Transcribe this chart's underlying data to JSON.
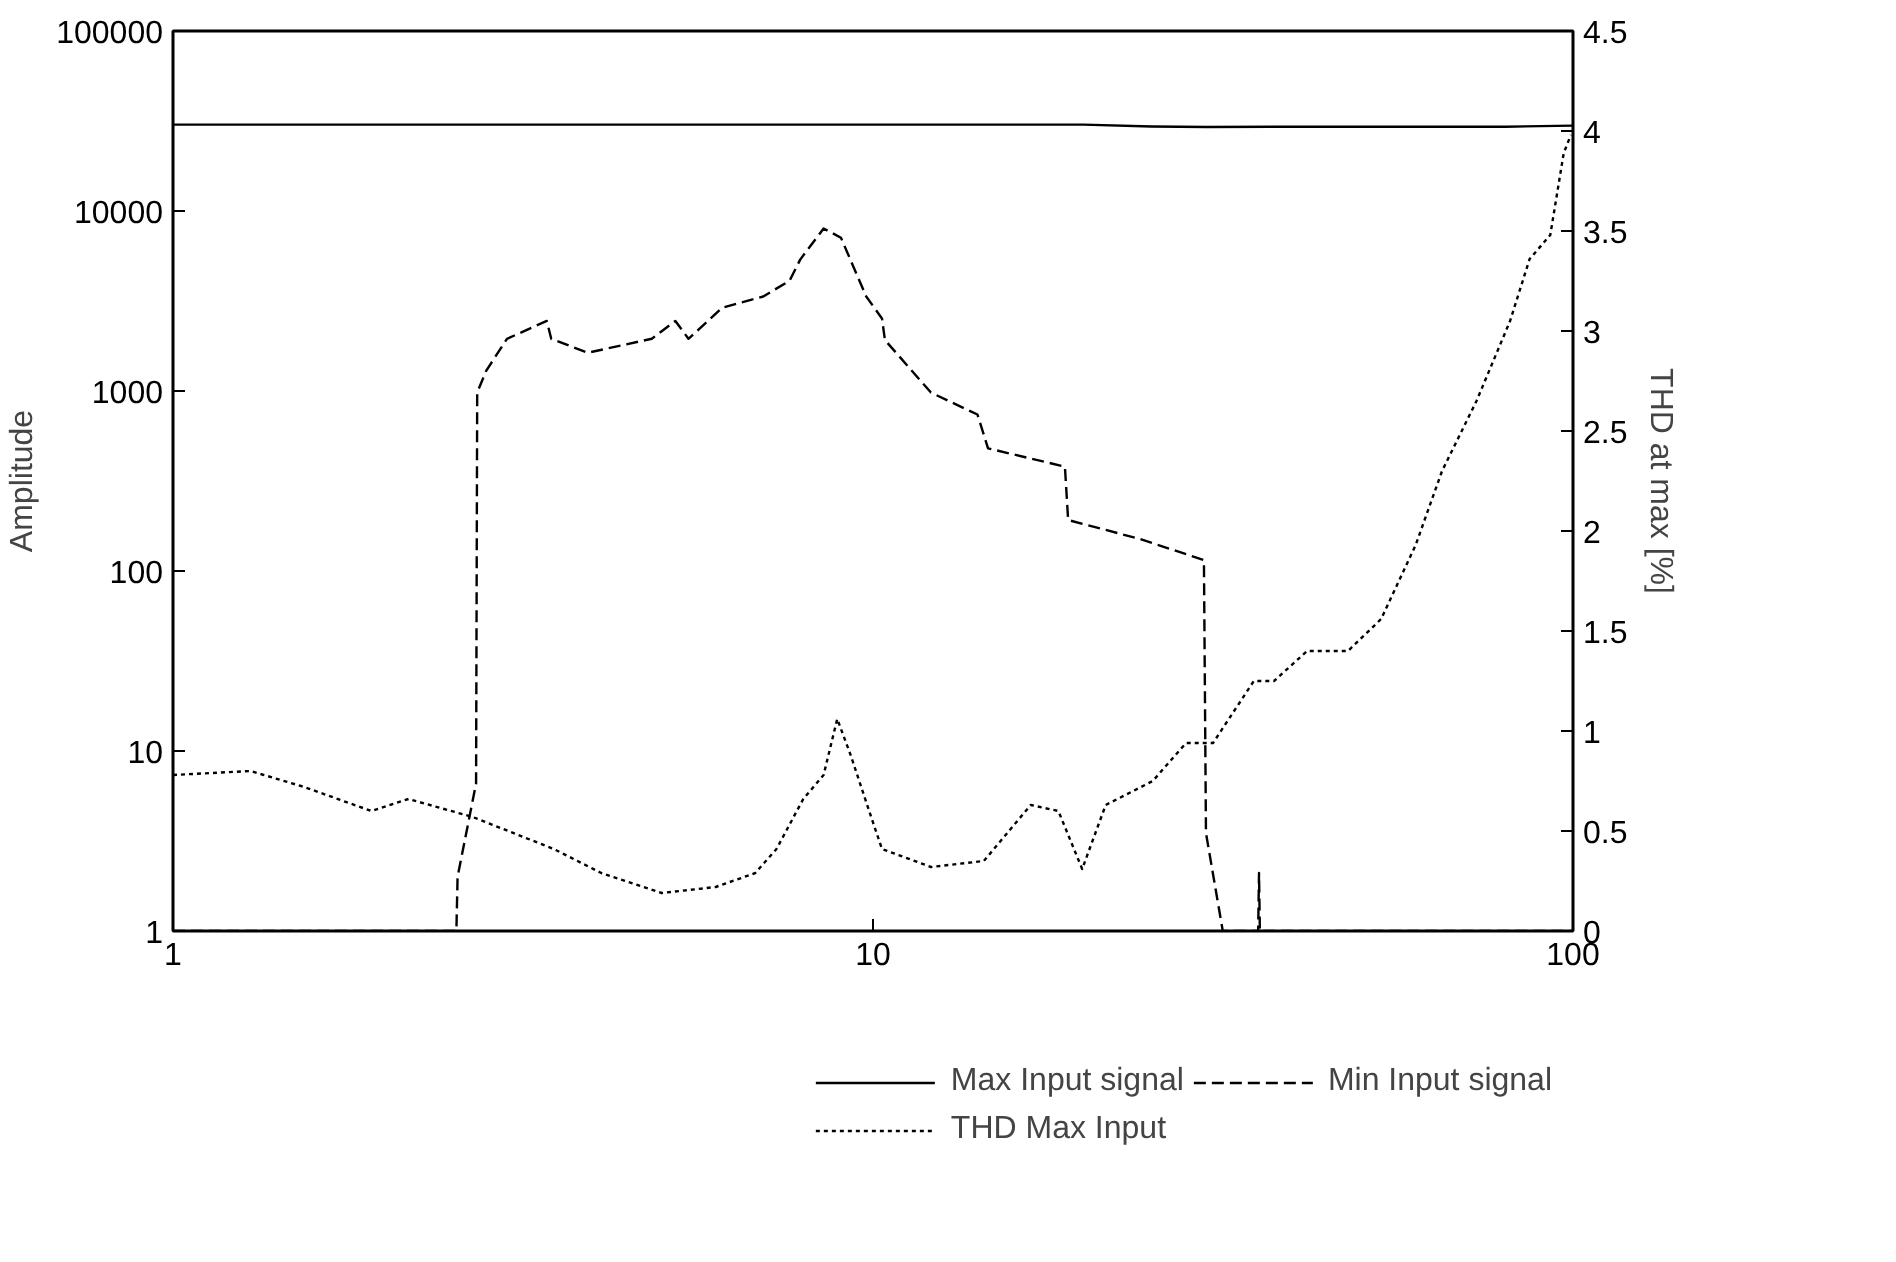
{
  "chart_data": {
    "type": "line",
    "ylabel": "Amplitude",
    "y2label": "THD at max [%]",
    "log": "xy",
    "grid": false,
    "legend": "bottom",
    "xlim": [
      1,
      100
    ],
    "xticks": [
      1,
      10,
      100
    ],
    "ylim": [
      1,
      100000
    ],
    "yticks": [
      1,
      10,
      100,
      1000,
      10000,
      100000
    ],
    "y2lim": [
      0,
      4.5
    ],
    "y2ticks": [
      0,
      0.5,
      1,
      1.5,
      2,
      2.5,
      3,
      3.5,
      4,
      4.5
    ],
    "series": [
      {
        "name": "Max Input signal",
        "color": "#000000",
        "line_style": "solid",
        "x": [
          1,
          5,
          10,
          20,
          25,
          30,
          40,
          60,
          80,
          100
        ],
        "values": [
          30200,
          30200,
          30200,
          30200,
          29500,
          29300,
          29400,
          29400,
          29400,
          29800
        ]
      },
      {
        "name": "Min Input signal",
        "color": "#000000",
        "line_style": "dashed",
        "x": [
          1,
          2.54,
          2.55,
          2.71,
          2.72,
          2.8,
          3.0,
          3.42,
          3.47,
          3.91,
          4.83,
          5.22,
          5.45,
          6.09,
          6.97,
          7.6,
          7.87,
          8.5,
          9.0,
          9.78,
          10.3,
          10.4,
          12.1,
          14.1,
          14.6,
          18.8,
          19.0,
          24.0,
          29.7,
          29.9,
          31.6,
          35.5,
          35.6,
          35.7,
          100
        ],
        "values": [
          1,
          1,
          2.0,
          6.6,
          980,
          1290,
          1950,
          2450,
          1950,
          1630,
          1950,
          2450,
          1950,
          2900,
          3350,
          4100,
          5370,
          8000,
          7100,
          3350,
          2530,
          1920,
          980,
          740,
          480,
          380,
          192,
          151,
          115,
          3.5,
          1,
          1,
          2.1,
          1,
          1
        ]
      },
      {
        "name": "THD Max Input",
        "color": "#000000",
        "line_style": "dotted",
        "axis": "y2",
        "x": [
          1,
          1.29,
          1.54,
          1.92,
          2.17,
          2.68,
          3.5,
          4.09,
          4.99,
          5.96,
          6.79,
          7.28,
          7.95,
          8.5,
          8.89,
          9.29,
          9.94,
          10.3,
          12.1,
          14.4,
          16.8,
          18.4,
          19.9,
          21.5,
          25.1,
          28.0,
          30.6,
          35.0,
          37.4,
          41.7,
          47.7,
          53.2,
          59.6,
          65.0,
          72.8,
          81.3,
          86.7,
          92.8,
          97,
          99.3
        ],
        "values": [
          0.78,
          0.8,
          0.72,
          0.6,
          0.66,
          0.57,
          0.41,
          0.29,
          0.19,
          0.22,
          0.29,
          0.41,
          0.66,
          0.78,
          1.06,
          0.88,
          0.57,
          0.41,
          0.32,
          0.35,
          0.63,
          0.6,
          0.31,
          0.63,
          0.75,
          0.94,
          0.94,
          1.25,
          1.25,
          1.4,
          1.4,
          1.56,
          1.93,
          2.3,
          2.65,
          3.05,
          3.36,
          3.48,
          3.89,
          3.98
        ]
      }
    ]
  }
}
